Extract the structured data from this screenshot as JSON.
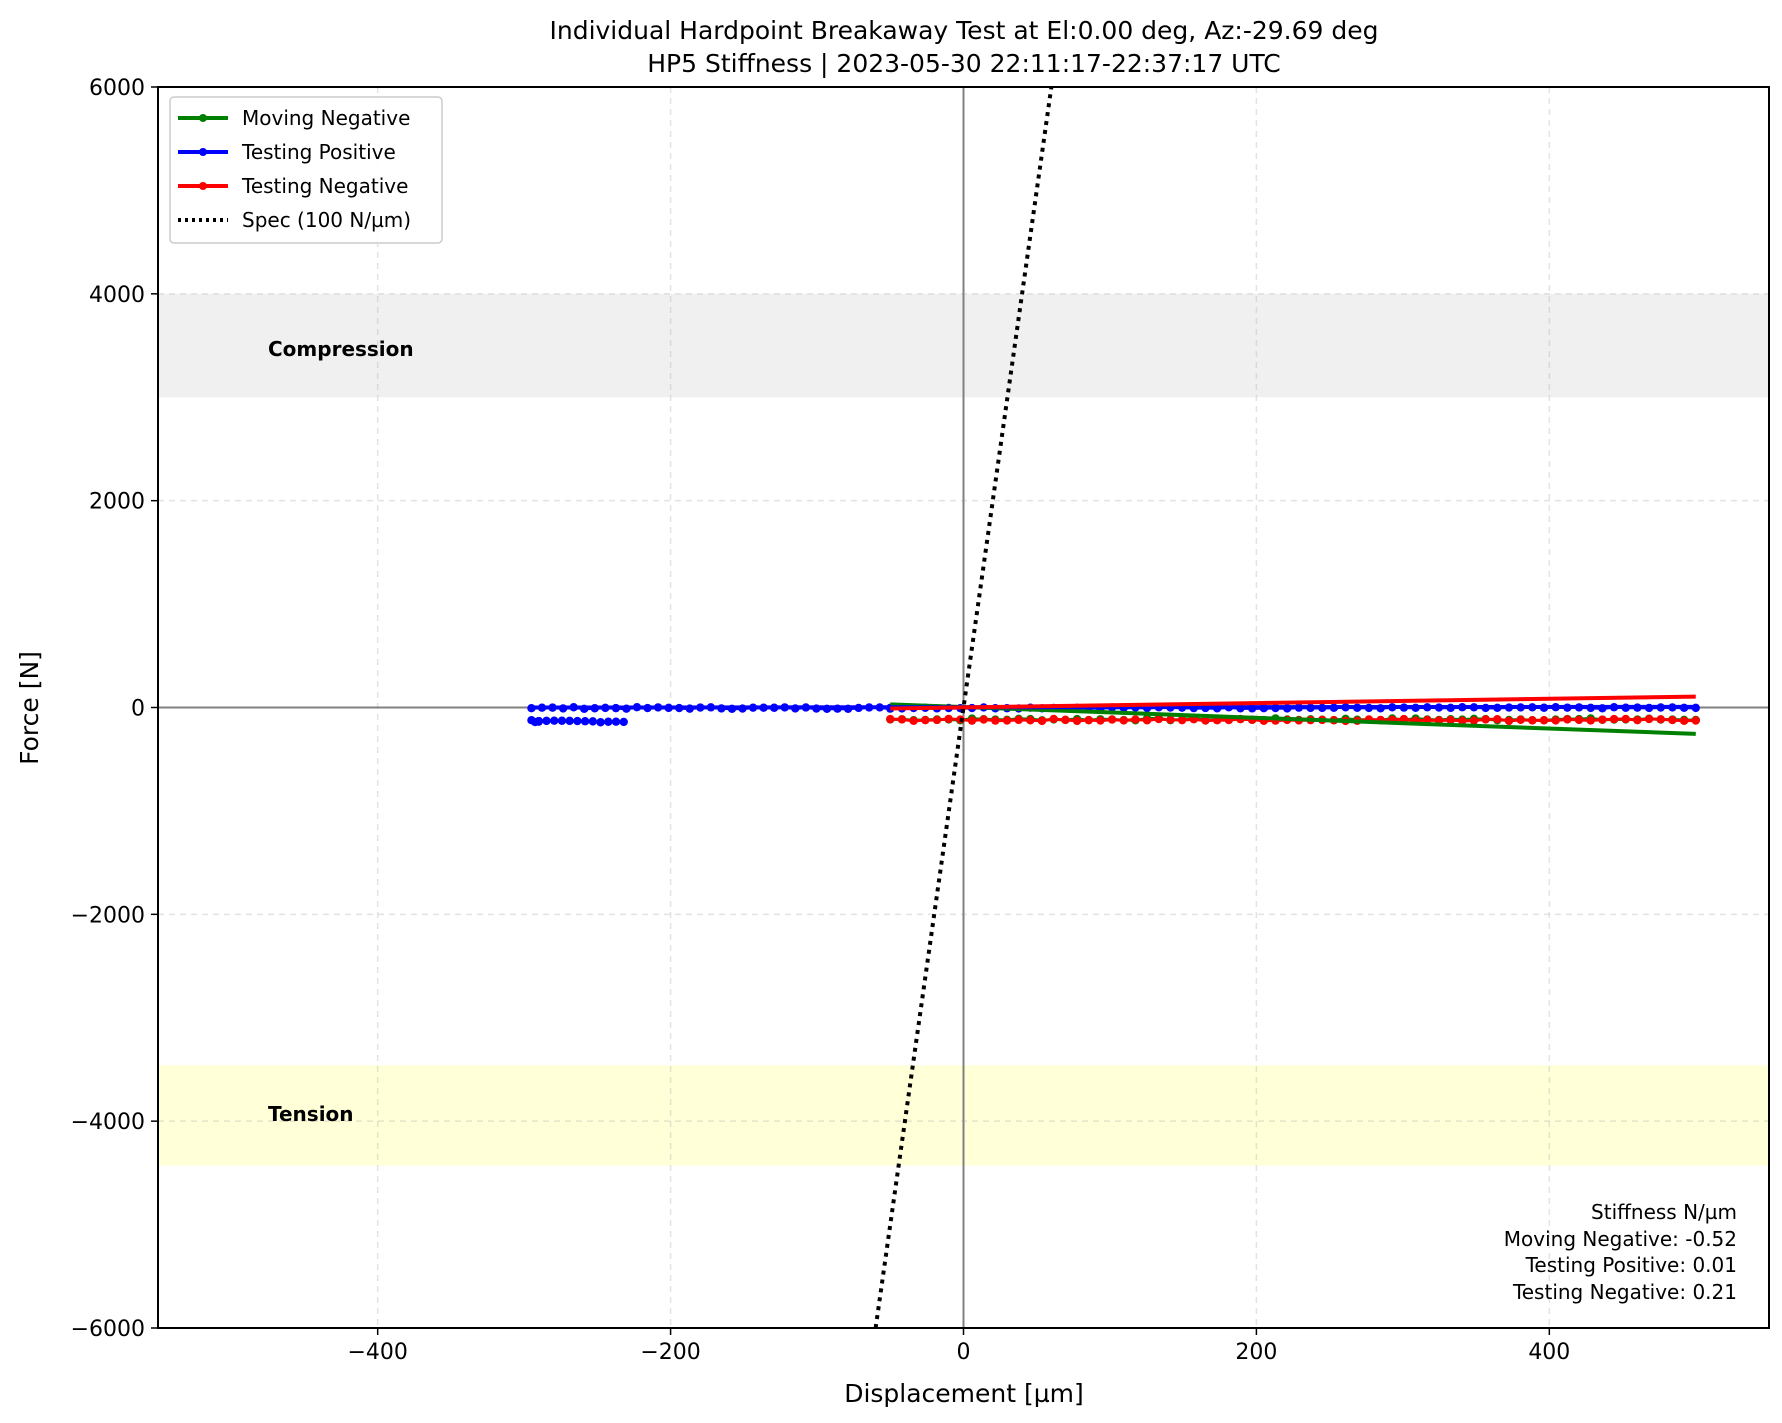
{
  "chart_data": {
    "type": "line",
    "title": "Individual Hardpoint Breakaway Test at El:0.00 deg, Az:-29.69 deg",
    "subtitle": "HP5 Stiffness | 2023-05-30 22:11:17-22:37:17 UTC",
    "xlabel": "Displacement [µm]",
    "ylabel": "Force [N]",
    "xlim": [
      -550,
      550
    ],
    "ylim": [
      -6000,
      6000
    ],
    "xticks": [
      -400,
      -200,
      0,
      200,
      400
    ],
    "yticks": [
      -6000,
      -4000,
      -2000,
      0,
      2000,
      4000,
      6000
    ],
    "xtick_labels": [
      "−400",
      "−200",
      "0",
      "200",
      "400"
    ],
    "ytick_labels": [
      "−6000",
      "−4000",
      "−2000",
      "0",
      "2000",
      "4000",
      "6000"
    ],
    "grid": true,
    "legend_position": "top-left",
    "bands": [
      {
        "name": "Compression",
        "ymin": 3000,
        "ymax": 4000,
        "color": "#f0f0f0"
      },
      {
        "name": "Tension",
        "ymin": -4430,
        "ymax": -3460,
        "color": "#ffffd8"
      }
    ],
    "series": [
      {
        "name": "Moving Negative",
        "color": "#008000",
        "marker": "dot",
        "points": {
          "x_start": -50,
          "x_end": 500,
          "n": 70,
          "y_base": -115,
          "y_noise": 10
        },
        "fit": {
          "slope": -0.52,
          "x": [
            -50,
            500
          ],
          "y": [
            30,
            -255
          ]
        }
      },
      {
        "name": "Testing Positive",
        "color": "#0000ff",
        "marker": "dot",
        "segments": [
          {
            "x_start": -295,
            "x_end": -290,
            "n": 3,
            "y_base": -130,
            "y_noise": 15
          },
          {
            "x_start": -290,
            "x_end": -232,
            "n": 12,
            "y_base": -135,
            "y_noise": 8
          },
          {
            "x_start": -295,
            "x_end": -50,
            "n": 35,
            "y_base": -5,
            "y_noise": 8
          },
          {
            "x_start": -50,
            "x_end": 500,
            "n": 70,
            "y_base": -3,
            "y_noise": 6
          }
        ],
        "fit": {
          "slope": 0.01,
          "x": [
            -295,
            500
          ],
          "y": [
            0,
            6
          ]
        }
      },
      {
        "name": "Testing Negative",
        "color": "#ff0000",
        "marker": "dot",
        "points": {
          "x_start": -50,
          "x_end": 500,
          "n": 70,
          "y_base": -120,
          "y_noise": 10
        },
        "fit": {
          "slope": 0.21,
          "x": [
            -50,
            500
          ],
          "y": [
            -10,
            105
          ]
        }
      },
      {
        "name": "Spec (100 N/µm)",
        "color": "#000000",
        "style": "dotted",
        "fit": {
          "slope": 100,
          "x": [
            -60,
            60
          ],
          "y": [
            -6000,
            6000
          ]
        }
      }
    ],
    "annotation": {
      "title": "Stiffness N/µm",
      "lines": [
        "Moving Negative: -0.52",
        "Testing Positive: 0.01",
        "Testing Negative: 0.21"
      ]
    }
  }
}
